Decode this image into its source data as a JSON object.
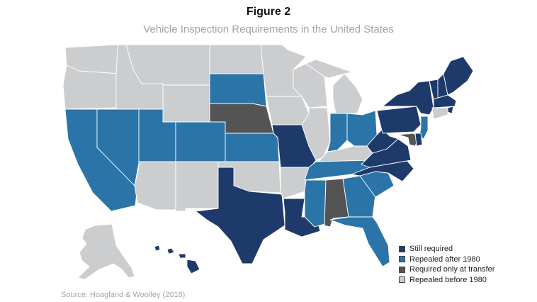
{
  "title": "Figure 2",
  "subtitle": "Vehicle Inspection Requirements in the United States",
  "source": "Source: Hoagland & Woolley (2018)",
  "colors": {
    "still": "#1d3a6b",
    "repealed_after": "#2b74a8",
    "transfer": "#545454",
    "before": "#cbcdcf"
  },
  "legend": [
    {
      "key": "still",
      "label": "Still required"
    },
    {
      "key": "repealed_after",
      "label": "Repealed after 1980"
    },
    {
      "key": "transfer",
      "label": "Required only at transfer"
    },
    {
      "key": "before",
      "label": "Repealed before 1980"
    }
  ],
  "states": {
    "WA": "before",
    "OR": "before",
    "CA": "repealed_after",
    "NV": "repealed_after",
    "ID": "before",
    "MT": "before",
    "WY": "before",
    "UT": "repealed_after",
    "AZ": "before",
    "CO": "repealed_after",
    "NM": "before",
    "ND": "before",
    "SD": "repealed_after",
    "NE": "transfer",
    "KS": "repealed_after",
    "OK": "before",
    "TX": "still",
    "MN": "before",
    "IA": "before",
    "MO": "still",
    "AR": "before",
    "LA": "still",
    "WI": "before",
    "IL": "before",
    "MI": "before",
    "IN": "repealed_after",
    "OH": "repealed_after",
    "KY": "before",
    "TN": "repealed_after",
    "MS": "repealed_after",
    "AL": "transfer",
    "GA": "repealed_after",
    "FL": "repealed_after",
    "SC": "repealed_after",
    "NC": "still",
    "VA": "still",
    "WV": "still",
    "PA": "still",
    "NY": "still",
    "VT": "still",
    "NH": "still",
    "ME": "still",
    "MA": "still",
    "RI": "still",
    "CT": "before",
    "NJ": "repealed_after",
    "DE": "still",
    "MD": "transfer",
    "AK": "before",
    "HI": "still"
  }
}
